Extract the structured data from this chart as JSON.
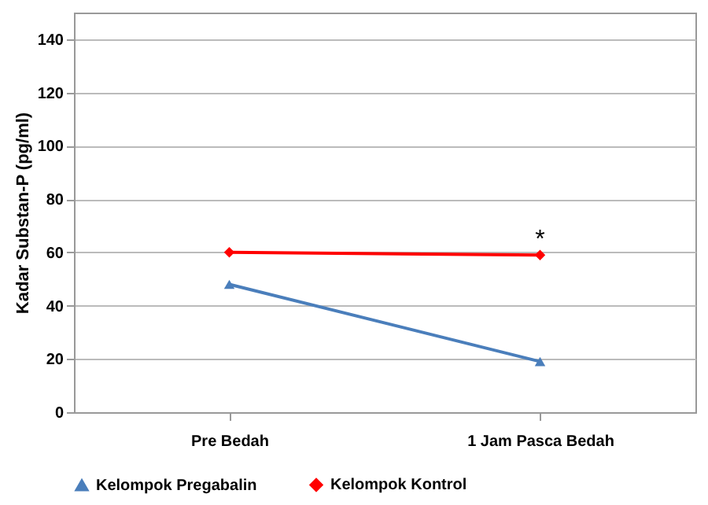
{
  "chart_data": {
    "type": "line",
    "ylabel": "Kadar Substan-P (pg/ml)",
    "categories": [
      "Pre Bedah",
      "1 Jam Pasca Bedah"
    ],
    "series": [
      {
        "name": "Kelompok Pregabalin",
        "color": "#4a7ebb",
        "values": [
          48,
          19
        ],
        "marker": "triangle"
      },
      {
        "name": "Kelompok Kontrol",
        "color": "#ff0000",
        "values": [
          60,
          59
        ],
        "marker": "diamond"
      }
    ],
    "ylim": [
      0,
      150
    ],
    "yticks": [
      0,
      20,
      40,
      60,
      80,
      100,
      120,
      140
    ],
    "grid": "y",
    "legend": "bottom",
    "annotations": [
      {
        "text": "*",
        "x": "1 Jam Pasca Bedah",
        "y": 59
      }
    ]
  }
}
